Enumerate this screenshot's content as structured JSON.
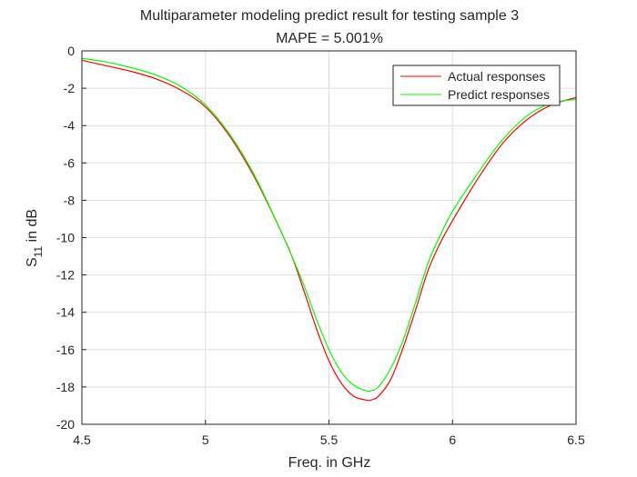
{
  "chart_data": {
    "type": "line",
    "title": "Multiparameter modeling predict result for testing sample 3",
    "subtitle": "MAPE = 5.001%",
    "xlabel": "Freq. in GHz",
    "ylabel_main": "S",
    "ylabel_sub": "11",
    "ylabel_tail": " in dB",
    "xlim": [
      4.5,
      6.5
    ],
    "ylim": [
      -20,
      0
    ],
    "xticks": [
      4.5,
      5,
      5.5,
      6,
      6.5
    ],
    "xtick_labels": [
      "4.5",
      "5",
      "5.5",
      "6",
      "6.5"
    ],
    "yticks": [
      0,
      -2,
      -4,
      -6,
      -8,
      -10,
      -12,
      -14,
      -16,
      -18,
      -20
    ],
    "ytick_labels": [
      "0",
      "-2",
      "-4",
      "-6",
      "-8",
      "-10",
      "-12",
      "-14",
      "-16",
      "-18",
      "-20"
    ],
    "grid": true,
    "legend_position": "top-right",
    "series": [
      {
        "name": "Actual responses",
        "color": "#ff0000",
        "x": [
          4.5,
          4.6,
          4.7,
          4.8,
          4.9,
          5.0,
          5.1,
          5.2,
          5.3,
          5.35,
          5.4,
          5.45,
          5.5,
          5.55,
          5.6,
          5.65,
          5.67,
          5.7,
          5.75,
          5.8,
          5.85,
          5.9,
          5.95,
          6.0,
          6.1,
          6.2,
          6.3,
          6.4,
          6.5
        ],
        "y": [
          -0.5,
          -0.8,
          -1.1,
          -1.5,
          -2.1,
          -3.0,
          -4.6,
          -6.8,
          -9.5,
          -11.0,
          -12.9,
          -14.9,
          -16.6,
          -17.8,
          -18.5,
          -18.7,
          -18.7,
          -18.5,
          -17.6,
          -15.9,
          -13.9,
          -11.8,
          -10.3,
          -9.1,
          -6.9,
          -5.0,
          -3.7,
          -2.9,
          -2.5
        ]
      },
      {
        "name": "Predict responses",
        "color": "#00ff00",
        "x": [
          4.5,
          4.6,
          4.7,
          4.8,
          4.9,
          5.0,
          5.1,
          5.2,
          5.3,
          5.35,
          5.4,
          5.45,
          5.5,
          5.55,
          5.6,
          5.65,
          5.67,
          5.7,
          5.75,
          5.8,
          5.85,
          5.9,
          5.95,
          6.0,
          6.1,
          6.2,
          6.3,
          6.4,
          6.5
        ],
        "y": [
          -0.4,
          -0.6,
          -0.9,
          -1.3,
          -1.9,
          -2.9,
          -4.5,
          -6.7,
          -9.5,
          -11.0,
          -12.6,
          -14.4,
          -16.0,
          -17.2,
          -17.9,
          -18.2,
          -18.2,
          -18.0,
          -17.0,
          -15.5,
          -13.5,
          -11.4,
          -9.9,
          -8.6,
          -6.6,
          -4.8,
          -3.5,
          -2.8,
          -2.6
        ]
      }
    ]
  }
}
